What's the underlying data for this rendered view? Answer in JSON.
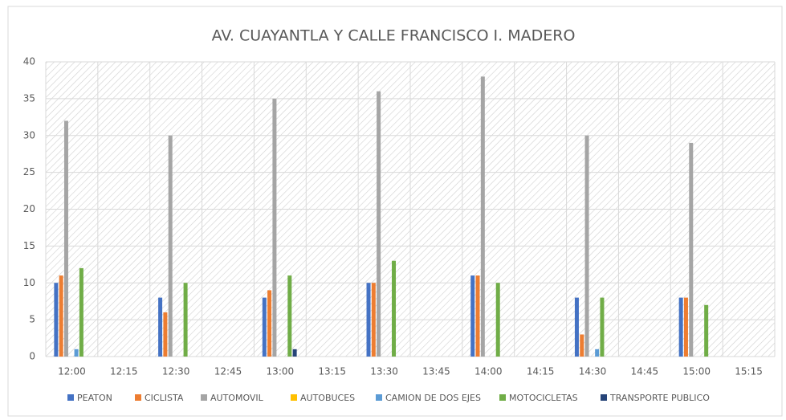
{
  "chart_data": {
    "type": "bar",
    "title": "AV. CUAYANTLA Y CALLE FRANCISCO I. MADERO",
    "categories": [
      "12:00",
      "12:15",
      "12:30",
      "12:45",
      "13:00",
      "13:15",
      "13:30",
      "13:45",
      "14:00",
      "14:15",
      "14:30",
      "14:45",
      "15:00",
      "15:15"
    ],
    "series": [
      {
        "name": "PEATON",
        "color": "#4472c4",
        "values": [
          10,
          null,
          8,
          null,
          8,
          null,
          10,
          null,
          11,
          null,
          8,
          null,
          8,
          null
        ]
      },
      {
        "name": "CICLISTA",
        "color": "#ed7d31",
        "values": [
          11,
          null,
          6,
          null,
          9,
          null,
          10,
          null,
          11,
          null,
          3,
          null,
          8,
          null
        ]
      },
      {
        "name": "AUTOMOVIL",
        "color": "#a5a5a5",
        "values": [
          32,
          null,
          30,
          null,
          35,
          null,
          36,
          null,
          38,
          null,
          30,
          null,
          29,
          null
        ]
      },
      {
        "name": "AUTOBUCES",
        "color": "#ffc000",
        "values": [
          0,
          null,
          0,
          null,
          0,
          null,
          0,
          null,
          0,
          null,
          0,
          null,
          0,
          null
        ]
      },
      {
        "name": "CAMION DE DOS EJES",
        "color": "#5b9bd5",
        "values": [
          1,
          null,
          0,
          null,
          0,
          null,
          0,
          null,
          0,
          null,
          1,
          null,
          0,
          null
        ]
      },
      {
        "name": "MOTOCICLETAS",
        "color": "#70ad47",
        "values": [
          12,
          null,
          10,
          null,
          11,
          null,
          13,
          null,
          10,
          null,
          8,
          null,
          7,
          null
        ]
      },
      {
        "name": "TRANSPORTE PUBLICO",
        "color": "#264478",
        "values": [
          0,
          null,
          0,
          null,
          1,
          null,
          0,
          null,
          0,
          null,
          0,
          null,
          0,
          null
        ]
      }
    ],
    "ylim": [
      0,
      40
    ],
    "yticks": [
      0,
      5,
      10,
      15,
      20,
      25,
      30,
      35,
      40
    ],
    "grid": true,
    "legend": "bottom"
  }
}
